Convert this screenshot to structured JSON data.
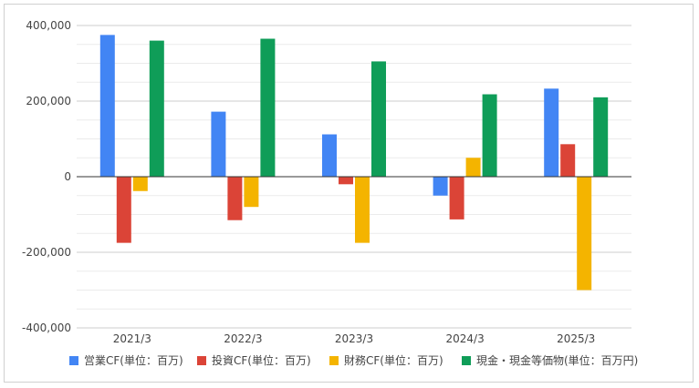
{
  "chart_data": {
    "type": "bar",
    "categories": [
      "2021/3",
      "2022/3",
      "2023/3",
      "2024/3",
      "2025/3"
    ],
    "series": [
      {
        "name": "営業CF(単位：百万)",
        "color": "#4285f4",
        "values": [
          375000,
          172000,
          112000,
          -50000,
          233000
        ]
      },
      {
        "name": "投資CF(単位：百万)",
        "color": "#db4437",
        "values": [
          -175000,
          -115000,
          -20000,
          -113000,
          86000
        ]
      },
      {
        "name": "財務CF(単位：百万)",
        "color": "#f4b400",
        "values": [
          -38000,
          -80000,
          -175000,
          50000,
          -300000
        ]
      },
      {
        "name": "現金・現金等価物(単位：百万円)",
        "color": "#0f9d58",
        "values": [
          360000,
          365000,
          305000,
          218000,
          210000
        ]
      }
    ],
    "yticks": [
      "400,000",
      "200,000",
      "0",
      "-200,000",
      "-400,000"
    ],
    "ylim": [
      -400000,
      400000
    ],
    "grid": true,
    "legend_position": "bottom",
    "title": "",
    "xlabel": "",
    "ylabel": ""
  }
}
